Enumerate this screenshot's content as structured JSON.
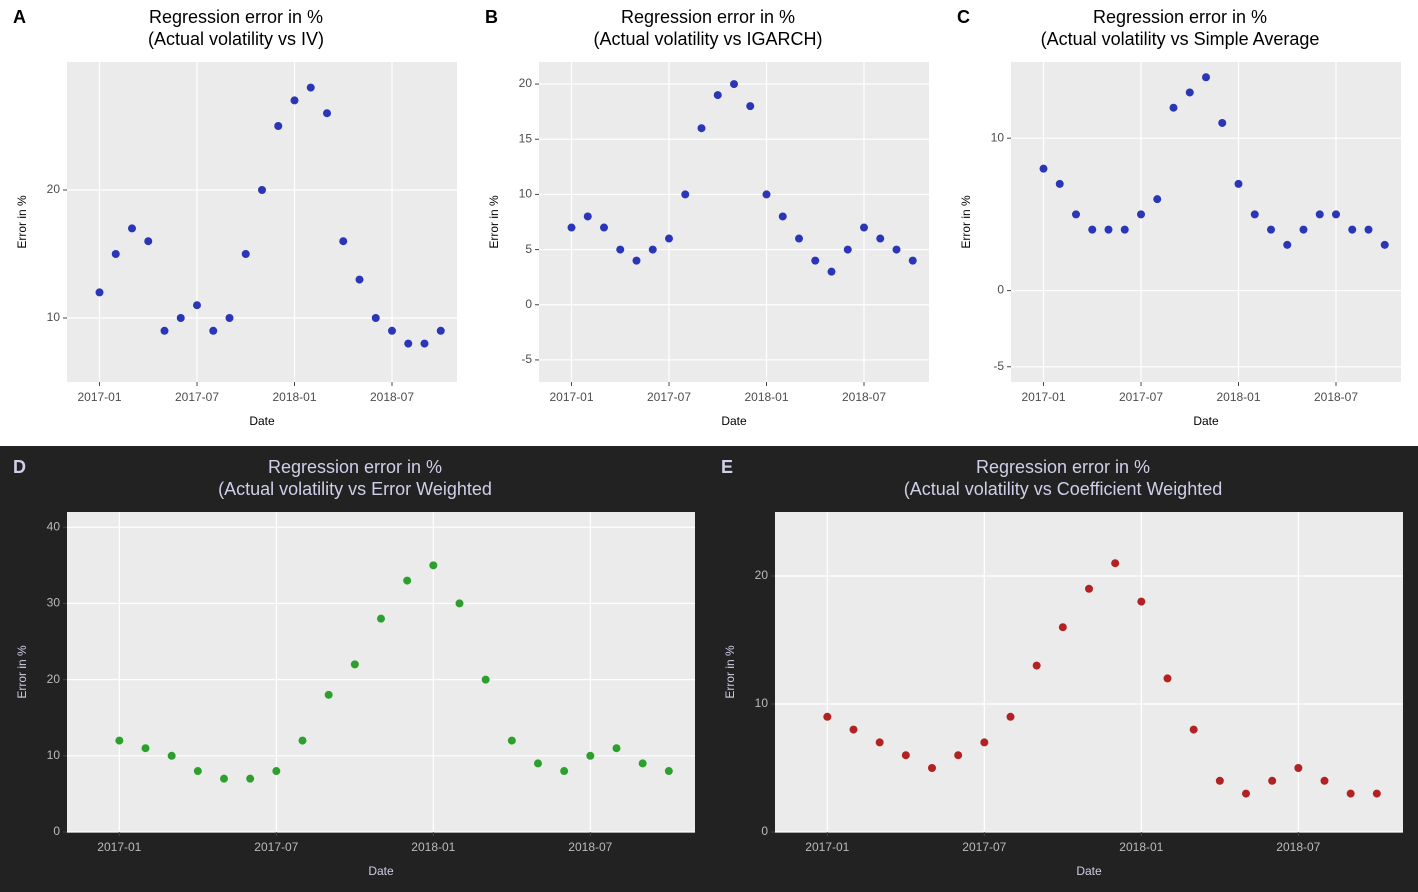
{
  "chart_data": [
    {
      "type": "scatter",
      "label": "A",
      "title": "Regression error in %",
      "subtitle": "(Actual volatility vs IV)",
      "x_label": "Date",
      "y_label": "Error in %",
      "color": "#2a35b8",
      "x": [
        "2017-01",
        "2017-02",
        "2017-03",
        "2017-04",
        "2017-05",
        "2017-06",
        "2017-07",
        "2017-08",
        "2017-09",
        "2017-10",
        "2017-11",
        "2017-12",
        "2018-01",
        "2018-02",
        "2018-03",
        "2018-04",
        "2018-05",
        "2018-06",
        "2018-07",
        "2018-08",
        "2018-09",
        "2018-10"
      ],
      "values": [
        12,
        15,
        17,
        16,
        9,
        10,
        11,
        9,
        10,
        15,
        20,
        25,
        27,
        28,
        26,
        16,
        13,
        10,
        9,
        8,
        8,
        9
      ],
      "xlim": [
        "2016-11",
        "2018-11"
      ],
      "xticks": [
        "2017-01",
        "2017-07",
        "2018-01",
        "2018-07"
      ],
      "ylim": [
        5,
        30
      ],
      "yticks": [
        10,
        20
      ],
      "grid": true
    },
    {
      "type": "scatter",
      "label": "B",
      "title": "Regression error in %",
      "subtitle": "(Actual volatility vs IGARCH)",
      "x_label": "Date",
      "y_label": "Error in %",
      "color": "#2a35b8",
      "x": [
        "2017-01",
        "2017-02",
        "2017-03",
        "2017-04",
        "2017-05",
        "2017-06",
        "2017-07",
        "2017-08",
        "2017-09",
        "2017-10",
        "2017-11",
        "2017-12",
        "2018-01",
        "2018-02",
        "2018-03",
        "2018-04",
        "2018-05",
        "2018-06",
        "2018-07",
        "2018-08",
        "2018-09",
        "2018-10"
      ],
      "values": [
        7,
        8,
        7,
        5,
        4,
        5,
        6,
        10,
        16,
        19,
        20,
        18,
        10,
        8,
        6,
        4,
        3,
        5,
        7,
        6,
        5,
        4
      ],
      "xlim": [
        "2016-11",
        "2018-11"
      ],
      "xticks": [
        "2017-01",
        "2017-07",
        "2018-01",
        "2018-07"
      ],
      "ylim": [
        -7,
        22
      ],
      "yticks": [
        -5,
        0,
        5,
        10,
        15,
        20
      ],
      "grid": true
    },
    {
      "type": "scatter",
      "label": "C",
      "title": "Regression error in %",
      "subtitle": "(Actual volatility vs Simple Average",
      "x_label": "Date",
      "y_label": "Error in %",
      "color": "#2a35b8",
      "x": [
        "2017-01",
        "2017-02",
        "2017-03",
        "2017-04",
        "2017-05",
        "2017-06",
        "2017-07",
        "2017-08",
        "2017-09",
        "2017-10",
        "2017-11",
        "2017-12",
        "2018-01",
        "2018-02",
        "2018-03",
        "2018-04",
        "2018-05",
        "2018-06",
        "2018-07",
        "2018-08",
        "2018-09",
        "2018-10"
      ],
      "values": [
        8,
        7,
        5,
        4,
        4,
        4,
        5,
        6,
        12,
        13,
        14,
        11,
        7,
        5,
        4,
        3,
        4,
        5,
        5,
        4,
        4,
        3
      ],
      "xlim": [
        "2016-11",
        "2018-11"
      ],
      "xticks": [
        "2017-01",
        "2017-07",
        "2018-01",
        "2018-07"
      ],
      "ylim": [
        -6,
        15
      ],
      "yticks": [
        -5,
        0,
        10
      ],
      "grid": true
    },
    {
      "type": "scatter",
      "label": "D",
      "title": "Regression error in %",
      "subtitle": "(Actual volatility vs Error Weighted",
      "x_label": "Date",
      "y_label": "Error in %",
      "color": "#2ca02c",
      "x": [
        "2017-01",
        "2017-02",
        "2017-03",
        "2017-04",
        "2017-05",
        "2017-06",
        "2017-07",
        "2017-08",
        "2017-09",
        "2017-10",
        "2017-11",
        "2017-12",
        "2018-01",
        "2018-02",
        "2018-03",
        "2018-04",
        "2018-05",
        "2018-06",
        "2018-07",
        "2018-08",
        "2018-09",
        "2018-10"
      ],
      "values": [
        12,
        11,
        10,
        8,
        7,
        7,
        8,
        12,
        18,
        22,
        28,
        33,
        35,
        30,
        20,
        12,
        9,
        8,
        10,
        11,
        9,
        8
      ],
      "xlim": [
        "2016-11",
        "2018-11"
      ],
      "xticks": [
        "2017-01",
        "2017-07",
        "2018-01",
        "2018-07"
      ],
      "ylim": [
        0,
        42
      ],
      "yticks": [
        0,
        10,
        20,
        30,
        40
      ],
      "grid": true
    },
    {
      "type": "scatter",
      "label": "E",
      "title": "Regression error in %",
      "subtitle": "(Actual volatility vs Coefficient Weighted",
      "x_label": "Date",
      "y_label": "Error in %",
      "color": "#b22222",
      "x": [
        "2017-01",
        "2017-02",
        "2017-03",
        "2017-04",
        "2017-05",
        "2017-06",
        "2017-07",
        "2017-08",
        "2017-09",
        "2017-10",
        "2017-11",
        "2017-12",
        "2018-01",
        "2018-02",
        "2018-03",
        "2018-04",
        "2018-05",
        "2018-06",
        "2018-07",
        "2018-08",
        "2018-09",
        "2018-10"
      ],
      "values": [
        9,
        8,
        7,
        6,
        5,
        6,
        7,
        9,
        13,
        16,
        19,
        21,
        18,
        12,
        8,
        4,
        3,
        4,
        5,
        4,
        3,
        3
      ],
      "xlim": [
        "2016-11",
        "2018-11"
      ],
      "xticks": [
        "2017-01",
        "2017-07",
        "2018-01",
        "2018-07"
      ],
      "ylim": [
        0,
        25
      ],
      "yticks": [
        0,
        10,
        20
      ],
      "grid": true
    }
  ]
}
